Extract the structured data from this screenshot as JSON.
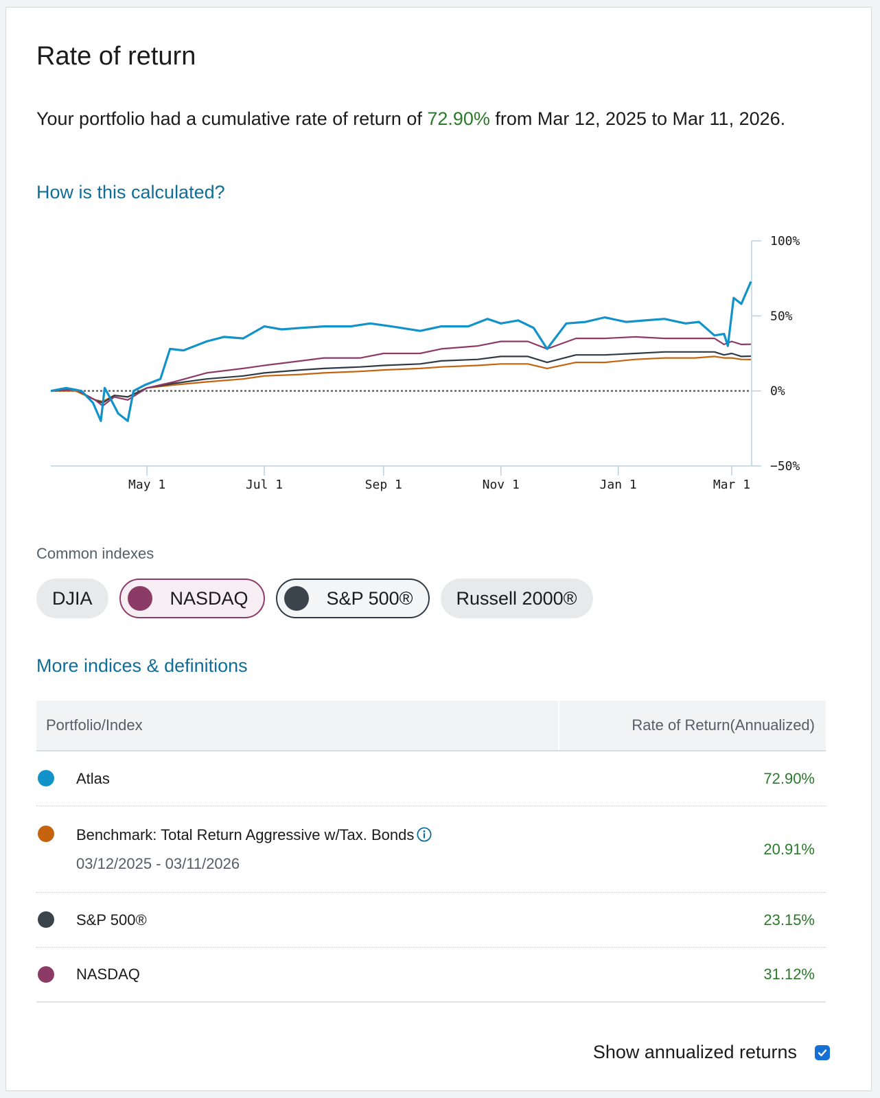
{
  "header": {
    "title": "Rate of return"
  },
  "summary": {
    "prefix": "Your portfolio had a cumulative rate of return of ",
    "value": "72.90%",
    "suffix": " from Mar 12, 2025 to Mar 11, 2026."
  },
  "links": {
    "calculated": "How is this calculated?",
    "more_indices": "More indices & definitions"
  },
  "chart_data": {
    "type": "line",
    "x_ticks": [
      "May 1",
      "Jul 1",
      "Sep 1",
      "Nov 1",
      "Jan 1",
      "Mar 1"
    ],
    "y_ticks": [
      "100%",
      "50%",
      "0%",
      "−50%"
    ],
    "ylim": [
      -50,
      100
    ],
    "xlim": [
      "2025-03-12",
      "2026-03-11"
    ],
    "reference_line": 0,
    "series": [
      {
        "name": "Atlas",
        "color": "#1192c9",
        "x": [
          "2025-03-12",
          "2025-03-20",
          "2025-03-28",
          "2025-04-03",
          "2025-04-07",
          "2025-04-09",
          "2025-04-12",
          "2025-04-16",
          "2025-04-21",
          "2025-04-24",
          "2025-04-30",
          "2025-05-08",
          "2025-05-13",
          "2025-05-20",
          "2025-06-01",
          "2025-06-10",
          "2025-06-20",
          "2025-07-01",
          "2025-07-10",
          "2025-07-20",
          "2025-08-01",
          "2025-08-15",
          "2025-08-25",
          "2025-09-05",
          "2025-09-20",
          "2025-10-01",
          "2025-10-15",
          "2025-10-25",
          "2025-11-01",
          "2025-11-10",
          "2025-11-18",
          "2025-11-25",
          "2025-12-05",
          "2025-12-15",
          "2025-12-25",
          "2026-01-05",
          "2026-01-15",
          "2026-01-25",
          "2026-02-05",
          "2026-02-12",
          "2026-02-20",
          "2026-02-25",
          "2026-02-27",
          "2026-03-02",
          "2026-03-06",
          "2026-03-11"
        ],
        "y": [
          0,
          2,
          0,
          -8,
          -20,
          2,
          -5,
          -15,
          -20,
          0,
          4,
          8,
          28,
          27,
          33,
          36,
          35,
          43,
          41,
          42,
          43,
          43,
          45,
          43,
          40,
          43,
          43,
          48,
          45,
          47,
          42,
          28,
          45,
          46,
          49,
          46,
          47,
          48,
          45,
          46,
          37,
          38,
          30,
          62,
          58,
          72.9
        ]
      },
      {
        "name": "NASDAQ",
        "color": "#8c3a66",
        "x": [
          "2025-03-12",
          "2025-03-25",
          "2025-04-04",
          "2025-04-08",
          "2025-04-14",
          "2025-04-21",
          "2025-05-01",
          "2025-05-15",
          "2025-06-01",
          "2025-06-20",
          "2025-07-01",
          "2025-07-20",
          "2025-08-01",
          "2025-08-20",
          "2025-09-01",
          "2025-09-20",
          "2025-10-01",
          "2025-10-20",
          "2025-11-01",
          "2025-11-15",
          "2025-11-25",
          "2025-12-10",
          "2025-12-25",
          "2026-01-10",
          "2026-01-25",
          "2026-02-10",
          "2026-02-20",
          "2026-02-25",
          "2026-03-01",
          "2026-03-06",
          "2026-03-11"
        ],
        "y": [
          0,
          1,
          -6,
          -10,
          -4,
          -6,
          2,
          6,
          12,
          15,
          17,
          20,
          22,
          22,
          25,
          25,
          28,
          30,
          33,
          33,
          28,
          35,
          35,
          36,
          35,
          35,
          35,
          31,
          33,
          31,
          31.12
        ]
      },
      {
        "name": "S&P 500®",
        "color": "#2f3a44",
        "x": [
          "2025-03-12",
          "2025-03-25",
          "2025-04-04",
          "2025-04-08",
          "2025-04-14",
          "2025-04-21",
          "2025-05-01",
          "2025-05-15",
          "2025-06-01",
          "2025-06-20",
          "2025-07-01",
          "2025-07-20",
          "2025-08-01",
          "2025-08-20",
          "2025-09-01",
          "2025-09-20",
          "2025-10-01",
          "2025-10-20",
          "2025-11-01",
          "2025-11-15",
          "2025-11-25",
          "2025-12-10",
          "2025-12-25",
          "2026-01-10",
          "2026-01-25",
          "2026-02-10",
          "2026-02-20",
          "2026-02-25",
          "2026-03-01",
          "2026-03-06",
          "2026-03-11"
        ],
        "y": [
          0,
          1,
          -6,
          -8,
          -3,
          -4,
          2,
          5,
          8,
          10,
          12,
          14,
          15,
          16,
          17,
          18,
          20,
          21,
          23,
          23,
          19,
          24,
          24,
          25,
          26,
          26,
          26,
          24,
          25,
          23,
          23.15
        ]
      },
      {
        "name": "Benchmark: Total Return Aggressive w/Tax. Bonds",
        "color": "#c5630e",
        "x": [
          "2025-03-12",
          "2025-03-25",
          "2025-04-04",
          "2025-04-08",
          "2025-04-14",
          "2025-04-21",
          "2025-05-01",
          "2025-05-15",
          "2025-06-01",
          "2025-06-20",
          "2025-07-01",
          "2025-07-20",
          "2025-08-01",
          "2025-08-20",
          "2025-09-01",
          "2025-09-20",
          "2025-10-01",
          "2025-10-20",
          "2025-11-01",
          "2025-11-15",
          "2025-11-25",
          "2025-12-10",
          "2025-12-25",
          "2026-01-10",
          "2026-01-25",
          "2026-02-10",
          "2026-02-20",
          "2026-02-25",
          "2026-03-01",
          "2026-03-06",
          "2026-03-11"
        ],
        "y": [
          0,
          0,
          -6,
          -7,
          -3,
          -4,
          2,
          4,
          6,
          8,
          10,
          11,
          12,
          13,
          14,
          15,
          16,
          17,
          18,
          18,
          15,
          19,
          19,
          21,
          22,
          22,
          23,
          22,
          22,
          21,
          20.91
        ]
      }
    ]
  },
  "indexes": {
    "label": "Common indexes",
    "chips": [
      {
        "label": "DJIA",
        "selected": false
      },
      {
        "label": "NASDAQ",
        "selected": true,
        "color": "#8c3a66"
      },
      {
        "label": "S&P 500®",
        "selected": true,
        "color": "#3b444d"
      },
      {
        "label": "Russell 2000®",
        "selected": false
      }
    ]
  },
  "table": {
    "headers": [
      "Portfolio/Index",
      "Rate of Return(Annualized)"
    ],
    "rows": [
      {
        "name": "Atlas",
        "value": "72.90%",
        "color": "#1192c9"
      },
      {
        "name": "Benchmark: Total Return Aggressive w/Tax. Bonds",
        "sub": "03/12/2025 - 03/11/2026",
        "value": "20.91%",
        "color": "#c5630e"
      },
      {
        "name": "S&P 500®",
        "value": "23.15%",
        "color": "#3b444d"
      },
      {
        "name": "NASDAQ",
        "value": "31.12%",
        "color": "#8c3a66"
      }
    ]
  },
  "footer": {
    "annualized_label": "Show annualized returns",
    "annualized_checked": true
  }
}
